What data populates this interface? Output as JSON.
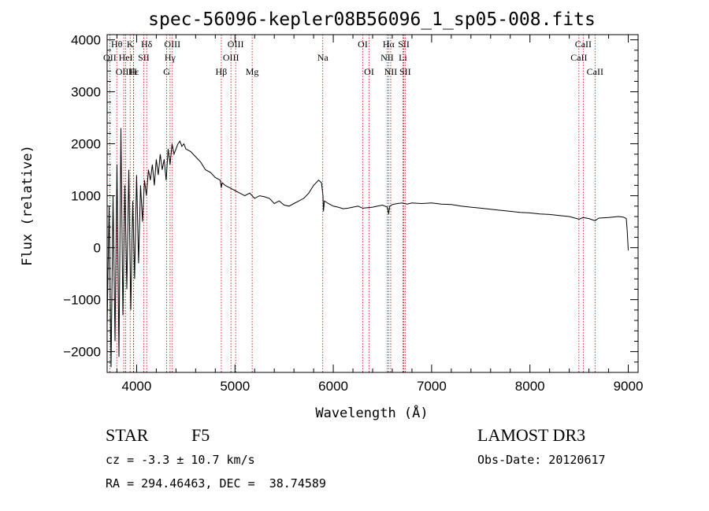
{
  "chart_data": {
    "type": "line",
    "title": "spec-56096-kepler08B56096_1_sp05-008.fits",
    "xlabel": "Wavelength (Å)",
    "ylabel": "Flux (relative)",
    "xlim": [
      3700,
      9100
    ],
    "ylim": [
      -2400,
      4100
    ],
    "xticks": [
      4000,
      5000,
      6000,
      7000,
      8000,
      9000
    ],
    "yticks": [
      -2000,
      -1000,
      0,
      1000,
      2000,
      3000,
      4000
    ],
    "series": [
      {
        "name": "flux",
        "x": [
          3700,
          3720,
          3740,
          3760,
          3780,
          3800,
          3820,
          3840,
          3860,
          3880,
          3900,
          3920,
          3940,
          3960,
          3980,
          4000,
          4020,
          4040,
          4060,
          4080,
          4100,
          4120,
          4140,
          4160,
          4180,
          4200,
          4220,
          4240,
          4260,
          4280,
          4300,
          4320,
          4340,
          4360,
          4380,
          4400,
          4420,
          4440,
          4460,
          4480,
          4500,
          4550,
          4600,
          4650,
          4700,
          4750,
          4800,
          4850,
          4861,
          4870,
          4900,
          4950,
          5000,
          5050,
          5100,
          5150,
          5200,
          5250,
          5300,
          5350,
          5400,
          5450,
          5500,
          5550,
          5600,
          5650,
          5700,
          5750,
          5800,
          5850,
          5880,
          5895,
          5900,
          5910,
          5950,
          6000,
          6050,
          6100,
          6150,
          6200,
          6250,
          6300,
          6350,
          6400,
          6450,
          6500,
          6550,
          6563,
          6575,
          6600,
          6650,
          6700,
          6750,
          6800,
          6900,
          7000,
          7100,
          7200,
          7300,
          7400,
          7500,
          7600,
          7700,
          7800,
          7900,
          8000,
          8100,
          8200,
          8300,
          8400,
          8498,
          8542,
          8600,
          8662,
          8700,
          8800,
          8900,
          8950,
          8980,
          8990,
          9000
        ],
        "y": [
          -1500,
          800,
          -2300,
          1000,
          -1800,
          1600,
          -2100,
          2300,
          -1300,
          1200,
          -800,
          1500,
          -1200,
          900,
          -600,
          1400,
          -300,
          1200,
          500,
          1300,
          1000,
          1500,
          1300,
          1600,
          1200,
          1700,
          1400,
          1800,
          1500,
          1700,
          1300,
          1900,
          1600,
          2000,
          1800,
          1900,
          2000,
          2050,
          1950,
          2000,
          1900,
          1850,
          1750,
          1650,
          1500,
          1450,
          1350,
          1300,
          1150,
          1250,
          1200,
          1150,
          1100,
          1050,
          1000,
          1050,
          950,
          1000,
          980,
          950,
          850,
          900,
          820,
          800,
          850,
          900,
          950,
          1050,
          1200,
          1300,
          1250,
          1000,
          700,
          900,
          850,
          800,
          780,
          750,
          760,
          780,
          800,
          760,
          770,
          780,
          800,
          820,
          780,
          650,
          800,
          830,
          850,
          860,
          840,
          860,
          850,
          860,
          840,
          830,
          800,
          780,
          760,
          740,
          720,
          700,
          680,
          670,
          650,
          640,
          620,
          600,
          550,
          580,
          560,
          520,
          570,
          580,
          600,
          590,
          560,
          300,
          -50
        ]
      }
    ],
    "spectral_lines": [
      {
        "name": "Hθ",
        "wavelength": 3798,
        "row": 1
      },
      {
        "name": "OII",
        "wavelength": 3727,
        "row": 2
      },
      {
        "name": "OIII",
        "wavelength": 3869,
        "row": 3
      },
      {
        "name": "HeI",
        "wavelength": 3889,
        "row": 2
      },
      {
        "name": "K",
        "wavelength": 3934,
        "row": 1
      },
      {
        "name": "Hε",
        "wavelength": 3970,
        "row": 3
      },
      {
        "name": "H",
        "wavelength": 3968,
        "row": 3
      },
      {
        "name": "SII",
        "wavelength": 4072,
        "row": 2
      },
      {
        "name": "Hδ",
        "wavelength": 4102,
        "row": 1
      },
      {
        "name": "OIII",
        "wavelength": 4363,
        "row": 1
      },
      {
        "name": "Hγ",
        "wavelength": 4340,
        "row": 2
      },
      {
        "name": "G",
        "wavelength": 4305,
        "row": 3
      },
      {
        "name": "Hβ",
        "wavelength": 4861,
        "row": 3
      },
      {
        "name": "OIII",
        "wavelength": 4959,
        "row": 2
      },
      {
        "name": "OIII",
        "wavelength": 5007,
        "row": 1
      },
      {
        "name": "Mg",
        "wavelength": 5175,
        "row": 3
      },
      {
        "name": "Na",
        "wavelength": 5893,
        "row": 2
      },
      {
        "name": "OI",
        "wavelength": 6300,
        "row": 1
      },
      {
        "name": "OI",
        "wavelength": 6364,
        "row": 3
      },
      {
        "name": "Hα",
        "wavelength": 6563,
        "row": 1
      },
      {
        "name": "NII",
        "wavelength": 6548,
        "row": 2
      },
      {
        "name": "NII",
        "wavelength": 6584,
        "row": 3
      },
      {
        "name": "SII",
        "wavelength": 6717,
        "row": 1
      },
      {
        "name": "Li",
        "wavelength": 6708,
        "row": 2
      },
      {
        "name": "SII",
        "wavelength": 6731,
        "row": 3
      },
      {
        "name": "CaII",
        "wavelength": 8542,
        "row": 1
      },
      {
        "name": "CaII",
        "wavelength": 8498,
        "row": 2
      },
      {
        "name": "CaII",
        "wavelength": 8662,
        "row": 3
      }
    ]
  },
  "info": {
    "class": "STAR",
    "subclass": "F5",
    "survey": "LAMOST DR3",
    "cz": "cz = -3.3 ± 10.7 km/s",
    "obs_date": "Obs-Date: 20120617",
    "coords": "RA = 294.46463, DEC =  38.74589"
  },
  "colors": {
    "line_marker": "#cc0000",
    "spectrum": "#000000"
  }
}
